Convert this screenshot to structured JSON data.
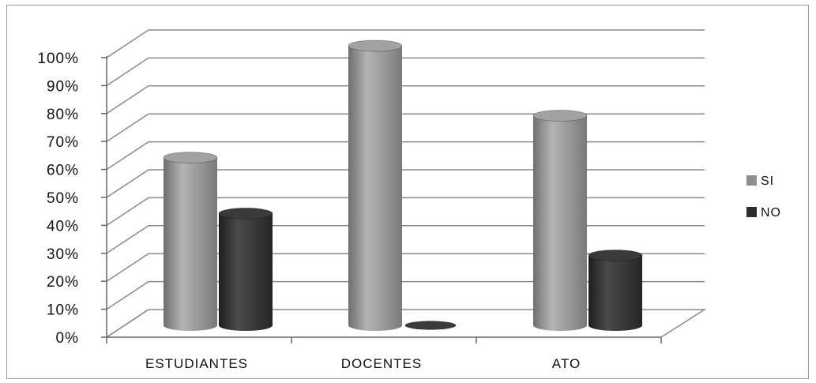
{
  "chart_data": {
    "type": "bar",
    "categories": [
      "ESTUDIANTES",
      "DOCENTES",
      "ATO"
    ],
    "series": [
      {
        "name": "SI",
        "values": [
          60,
          100,
          75
        ],
        "color": "#8e8e8e"
      },
      {
        "name": "NO",
        "values": [
          40,
          0,
          25
        ],
        "color": "#2c2c2c"
      }
    ],
    "y_ticks": [
      "0%",
      "10%",
      "20%",
      "30%",
      "40%",
      "50%",
      "60%",
      "70%",
      "80%",
      "90%",
      "100%"
    ],
    "ylim": [
      0,
      100
    ],
    "grid": true,
    "legend_position": "right",
    "style": "3d-cylinder"
  }
}
